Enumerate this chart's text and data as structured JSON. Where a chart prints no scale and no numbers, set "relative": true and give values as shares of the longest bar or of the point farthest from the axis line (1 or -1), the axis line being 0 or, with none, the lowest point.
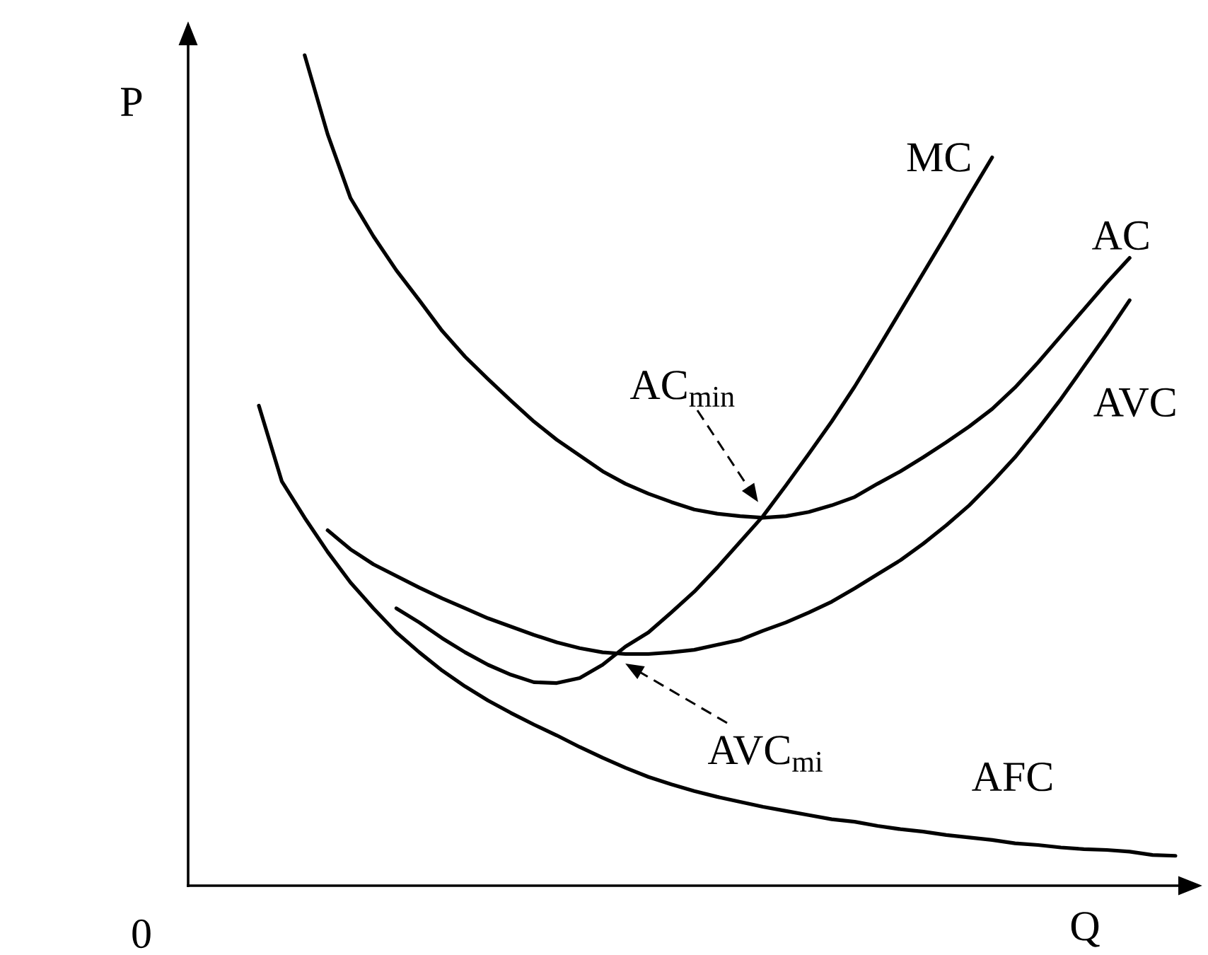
{
  "chart_data": {
    "type": "line",
    "relative": true,
    "xlabel": "Q",
    "ylabel": "P",
    "line_style": "solid",
    "categories": [
      null,
      null,
      null,
      null,
      null,
      null,
      null,
      null,
      null,
      null,
      null,
      null,
      null,
      null,
      null,
      null,
      null,
      null,
      null,
      null,
      null,
      null,
      null,
      null,
      null,
      null,
      null,
      null,
      null,
      null,
      null,
      null,
      null,
      null,
      null,
      null,
      null,
      null,
      null,
      null,
      null
    ],
    "series": [
      {
        "name": "MC",
        "color": "#000000",
        "values": [
          null,
          null,
          null,
          null,
          null,
          null,
          0.334,
          0.317,
          0.298,
          0.281,
          0.266,
          0.254,
          0.245,
          0.244,
          0.25,
          0.266,
          0.288,
          0.305,
          0.329,
          0.354,
          0.383,
          0.414,
          0.445,
          0.482,
          0.52,
          0.559,
          0.601,
          0.646,
          0.692,
          0.738,
          0.784,
          0.831,
          0.877,
          null,
          null,
          null,
          null,
          null,
          null,
          null,
          null
        ]
      },
      {
        "name": "AC",
        "color": "#000000",
        "values": [
          null,
          null,
          1,
          0.905,
          0.828,
          0.782,
          0.741,
          0.705,
          0.668,
          0.637,
          0.61,
          0.584,
          0.559,
          0.537,
          0.518,
          0.499,
          0.484,
          0.472,
          0.462,
          0.453,
          0.448,
          0.445,
          0.443,
          0.445,
          0.45,
          0.458,
          0.468,
          0.484,
          0.499,
          0.516,
          0.534,
          0.553,
          0.574,
          0.6,
          0.63,
          0.662,
          0.694,
          0.726,
          0.756,
          null,
          null
        ]
      },
      {
        "name": "AVC",
        "color": "#000000",
        "values": [
          null,
          null,
          null,
          0.428,
          0.405,
          0.387,
          0.373,
          0.359,
          0.346,
          0.334,
          0.322,
          0.312,
          0.302,
          0.293,
          0.286,
          0.281,
          0.279,
          0.279,
          0.281,
          0.284,
          0.29,
          0.296,
          0.307,
          0.317,
          0.329,
          0.342,
          0.358,
          0.375,
          0.392,
          0.412,
          0.434,
          0.458,
          0.486,
          0.516,
          0.55,
          0.586,
          0.625,
          0.664,
          0.705,
          null,
          null
        ]
      },
      {
        "name": "AFC",
        "color": "#000000",
        "values": [
          0.578,
          0.487,
          0.443,
          0.402,
          0.365,
          0.334,
          0.305,
          0.281,
          0.259,
          0.24,
          0.223,
          0.208,
          0.194,
          0.181,
          0.167,
          0.154,
          0.142,
          0.131,
          0.122,
          0.114,
          0.107,
          0.101,
          0.095,
          0.09,
          0.085,
          0.08,
          0.077,
          0.072,
          0.068,
          0.065,
          0.061,
          0.058,
          0.055,
          0.051,
          0.049,
          0.046,
          0.044,
          0.043,
          0.041,
          0.037,
          0.036
        ]
      }
    ],
    "annotations": [
      "0",
      "AC$_{min}$",
      "AVC$_{mi}$"
    ]
  }
}
